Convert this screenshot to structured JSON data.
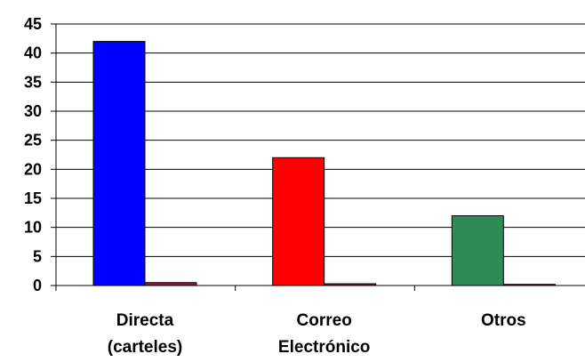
{
  "chart_data": {
    "type": "bar",
    "categories": [
      {
        "lines": [
          "Directa",
          "(carteles)"
        ]
      },
      {
        "lines": [
          "Correo",
          "Electrónico"
        ]
      },
      {
        "lines": [
          "Otros"
        ]
      }
    ],
    "series": [
      {
        "values": [
          42,
          22,
          12
        ],
        "colors": [
          "#0000ff",
          "#ff0000",
          "#2e8b57"
        ]
      },
      {
        "values": [
          0.5,
          0.3,
          0.2
        ],
        "color": "#8b1a4a"
      }
    ],
    "yticks": [
      "0",
      "5",
      "10",
      "15",
      "20",
      "25",
      "30",
      "35",
      "40",
      "45"
    ],
    "ylim": [
      0,
      45
    ],
    "grid": true,
    "legend": "none"
  }
}
